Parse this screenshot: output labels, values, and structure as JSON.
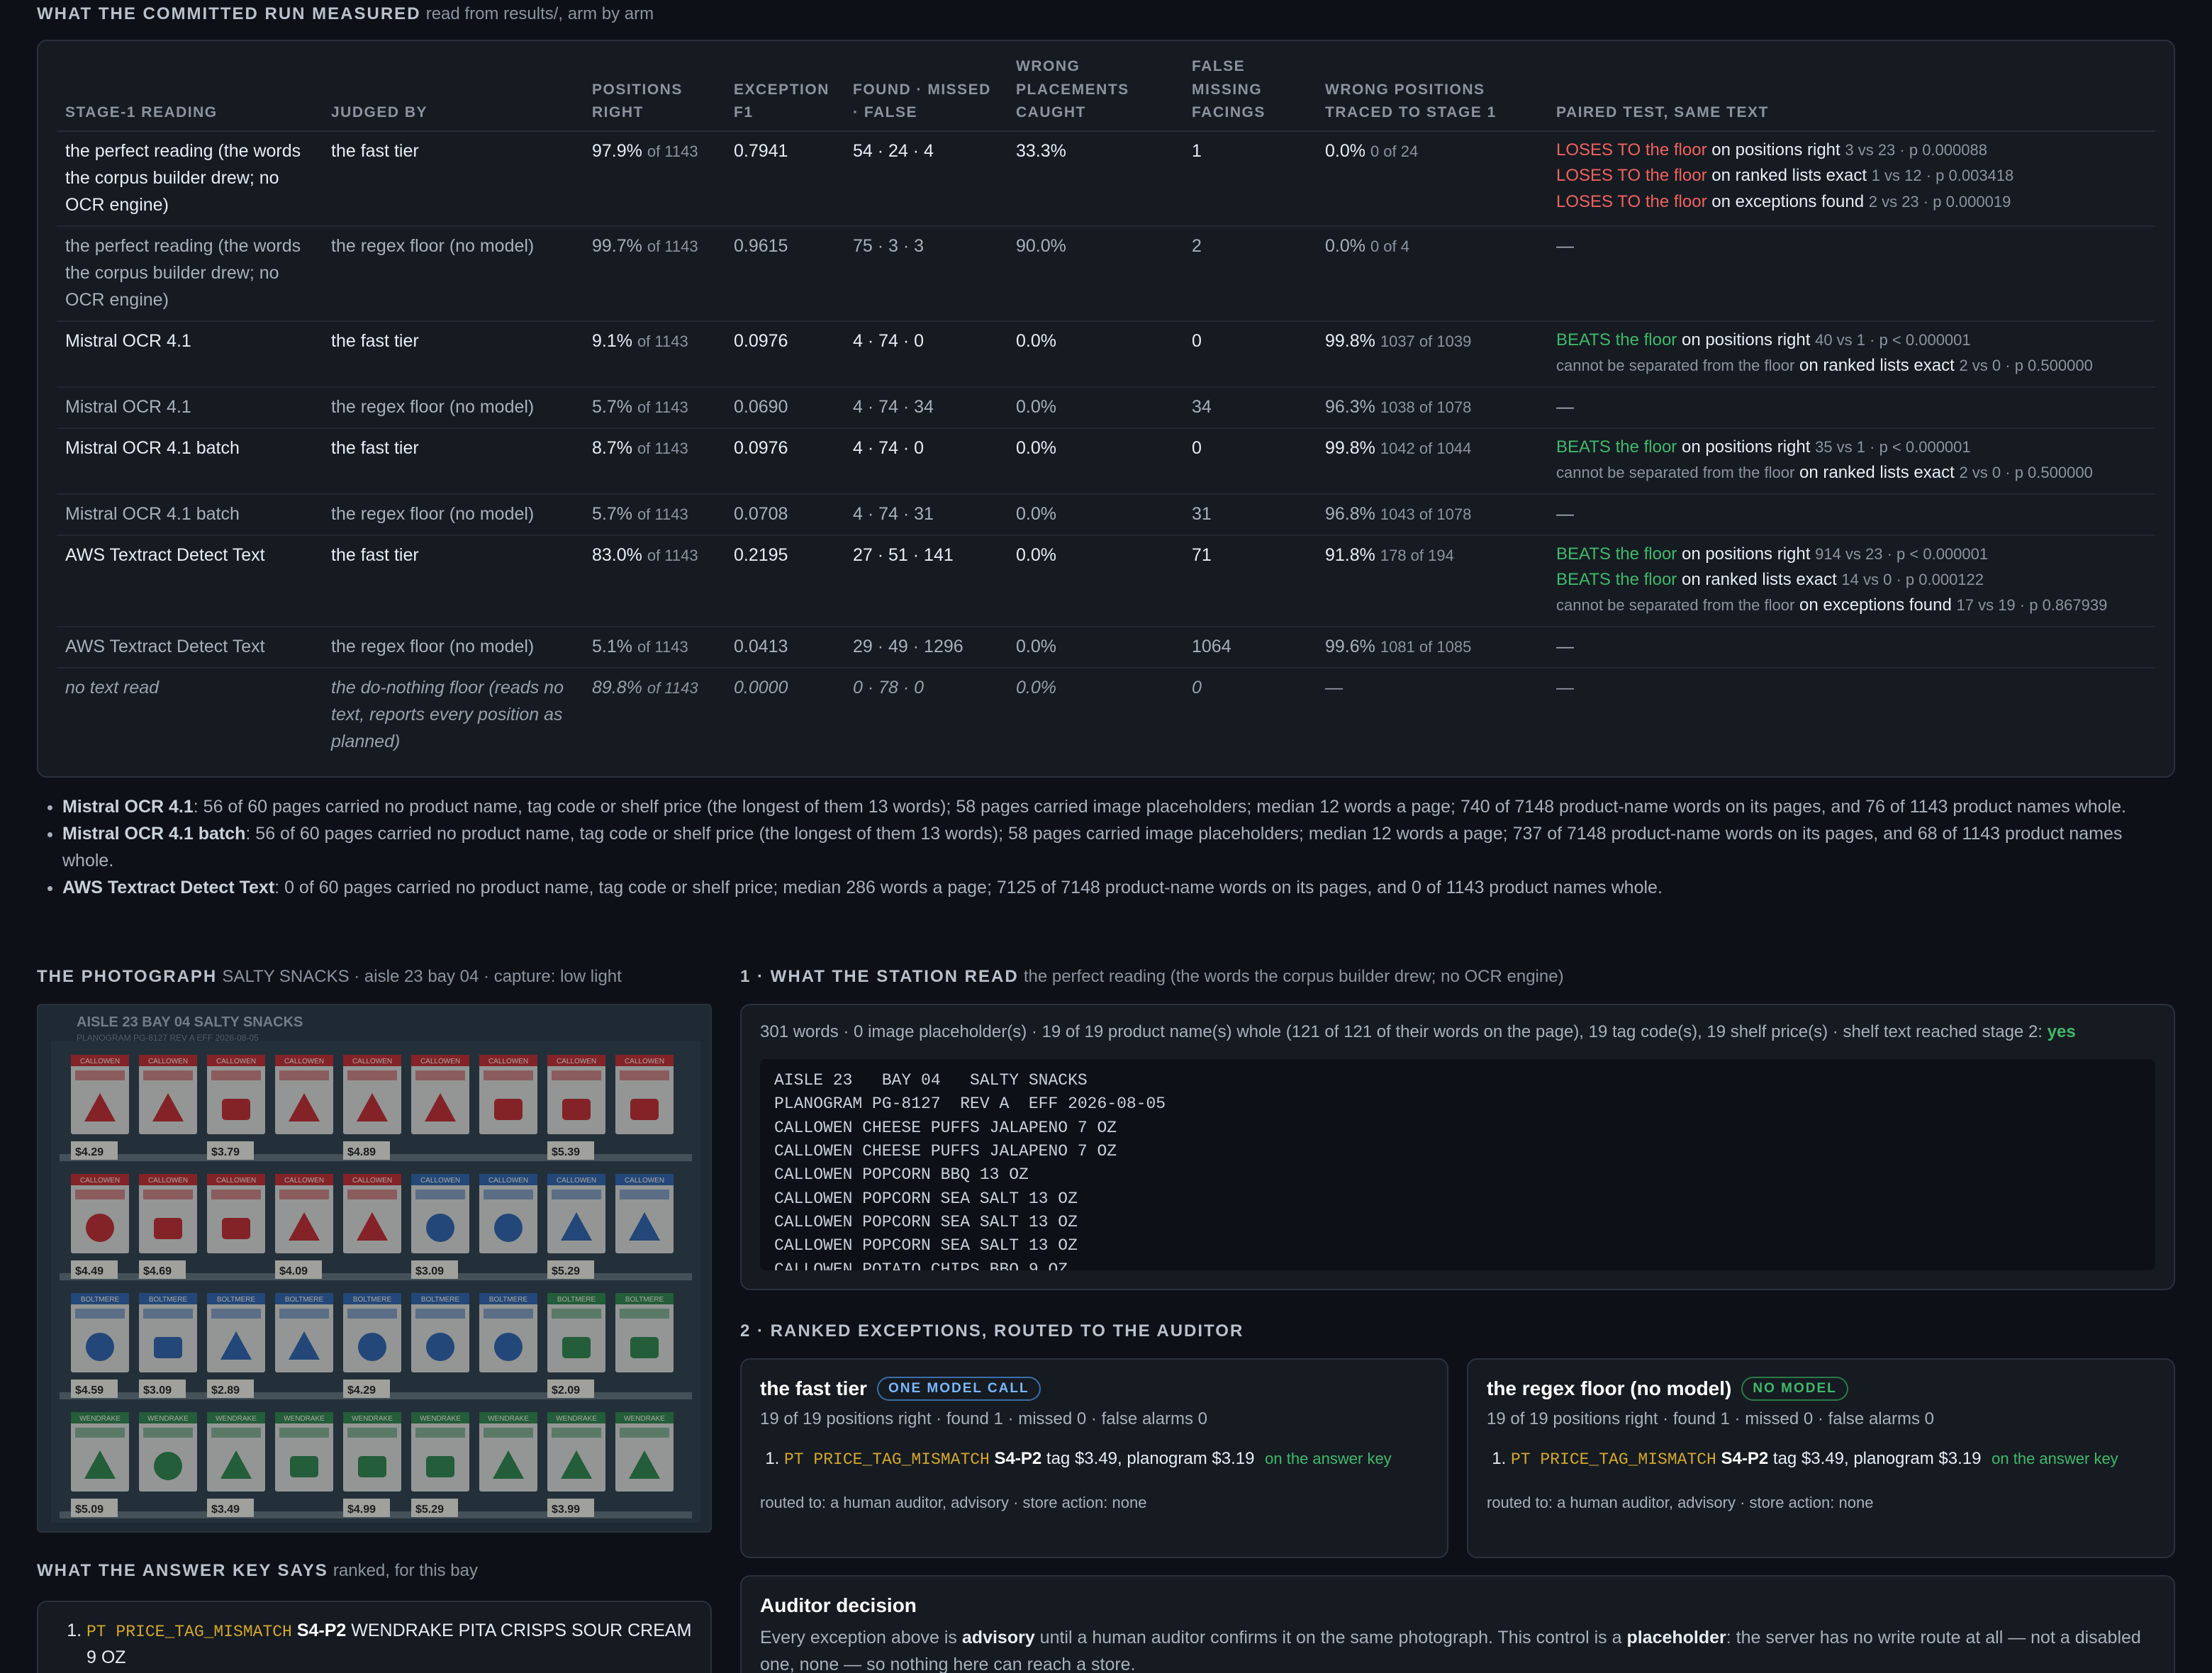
{
  "results": {
    "heading": "WHAT THE COMMITTED RUN MEASURED",
    "subheading": "read from results/, arm by arm",
    "columns": [
      "STAGE-1 READING",
      "JUDGED BY",
      "POSITIONS RIGHT",
      "EXCEPTION F1",
      "FOUND · MISSED · FALSE",
      "WRONG PLACEMENTS CAUGHT",
      "FALSE MISSING FACINGS",
      "WRONG POSITIONS TRACED TO STAGE 1",
      "PAIRED TEST, SAME TEXT"
    ],
    "rows": [
      {
        "style": "strong",
        "reading": "the perfect reading (the words the corpus builder drew; no OCR engine)",
        "judge": "the fast tier",
        "pos": "97.9%",
        "pos_of": "of 1143",
        "f1": "0.7941",
        "fmf": "54 · 24 · 4",
        "wpc": "33.3%",
        "fmf2": "1",
        "traced": "0.0%",
        "traced_of": "0 of 24",
        "verdicts": [
          {
            "kind": "lose",
            "label": "LOSES TO the floor",
            "on": "on positions right",
            "stat": "3 vs 23 · p 0.000088"
          },
          {
            "kind": "lose",
            "label": "LOSES TO the floor",
            "on": "on ranked lists exact",
            "stat": "1 vs 12 · p 0.003418"
          },
          {
            "kind": "lose",
            "label": "LOSES TO the floor",
            "on": "on exceptions found",
            "stat": "2 vs 23 · p 0.000019"
          }
        ]
      },
      {
        "style": "dim",
        "reading": "the perfect reading (the words the corpus builder drew; no OCR engine)",
        "judge": "the regex floor (no model)",
        "pos": "99.7%",
        "pos_of": "of 1143",
        "f1": "0.9615",
        "fmf": "75 · 3 · 3",
        "wpc": "90.0%",
        "fmf2": "2",
        "traced": "0.0%",
        "traced_of": "0 of 4",
        "dash": "—",
        "verdicts": []
      },
      {
        "style": "strong",
        "reading": "Mistral OCR 4.1",
        "judge": "the fast tier",
        "pos": "9.1%",
        "pos_of": "of 1143",
        "f1": "0.0976",
        "fmf": "4 · 74 · 0",
        "wpc": "0.0%",
        "fmf2": "0",
        "traced": "99.8%",
        "traced_of": "1037 of 1039",
        "verdicts": [
          {
            "kind": "beat",
            "label": "BEATS the floor",
            "on": "on positions right",
            "stat": "40 vs 1 · p < 0.000001"
          },
          {
            "kind": "cs",
            "label": "cannot be separated from the floor",
            "on": "on ranked lists exact",
            "stat": "2 vs 0 · p 0.500000"
          }
        ]
      },
      {
        "style": "dim",
        "reading": "Mistral OCR 4.1",
        "judge": "the regex floor (no model)",
        "pos": "5.7%",
        "pos_of": "of 1143",
        "f1": "0.0690",
        "fmf": "4 · 74 · 34",
        "wpc": "0.0%",
        "fmf2": "34",
        "traced": "96.3%",
        "traced_of": "1038 of 1078",
        "dash": "—",
        "verdicts": []
      },
      {
        "style": "strong",
        "reading": "Mistral OCR 4.1 batch",
        "judge": "the fast tier",
        "pos": "8.7%",
        "pos_of": "of 1143",
        "f1": "0.0976",
        "fmf": "4 · 74 · 0",
        "wpc": "0.0%",
        "fmf2": "0",
        "traced": "99.8%",
        "traced_of": "1042 of 1044",
        "verdicts": [
          {
            "kind": "beat",
            "label": "BEATS the floor",
            "on": "on positions right",
            "stat": "35 vs 1 · p < 0.000001"
          },
          {
            "kind": "cs",
            "label": "cannot be separated from the floor",
            "on": "on ranked lists exact",
            "stat": "2 vs 0 · p 0.500000"
          }
        ]
      },
      {
        "style": "dim",
        "reading": "Mistral OCR 4.1 batch",
        "judge": "the regex floor (no model)",
        "pos": "5.7%",
        "pos_of": "of 1143",
        "f1": "0.0708",
        "fmf": "4 · 74 · 31",
        "wpc": "0.0%",
        "fmf2": "31",
        "traced": "96.8%",
        "traced_of": "1043 of 1078",
        "dash": "—",
        "verdicts": []
      },
      {
        "style": "strong",
        "reading": "AWS Textract Detect Text",
        "judge": "the fast tier",
        "pos": "83.0%",
        "pos_of": "of 1143",
        "f1": "0.2195",
        "fmf": "27 · 51 · 141",
        "wpc": "0.0%",
        "fmf2": "71",
        "traced": "91.8%",
        "traced_of": "178 of 194",
        "verdicts": [
          {
            "kind": "beat",
            "label": "BEATS the floor",
            "on": "on positions right",
            "stat": "914 vs 23 · p < 0.000001"
          },
          {
            "kind": "beat",
            "label": "BEATS the floor",
            "on": "on ranked lists exact",
            "stat": "14 vs 0 · p 0.000122"
          },
          {
            "kind": "cs",
            "label": "cannot be separated from the floor",
            "on": "on exceptions found",
            "stat": "17 vs 19 · p 0.867939"
          }
        ]
      },
      {
        "style": "dim",
        "reading": "AWS Textract Detect Text",
        "judge": "the regex floor (no model)",
        "pos": "5.1%",
        "pos_of": "of 1143",
        "f1": "0.0413",
        "fmf": "29 · 49 · 1296",
        "wpc": "0.0%",
        "fmf2": "1064",
        "traced": "99.6%",
        "traced_of": "1081 of 1085",
        "dash": "—",
        "verdicts": []
      },
      {
        "style": "ital",
        "reading": "no text read",
        "judge": "the do-nothing floor (reads no text, reports every position as planned)",
        "pos": "89.8%",
        "pos_of": "of 1143",
        "f1": "0.0000",
        "fmf": "0 · 78 · 0",
        "wpc": "0.0%",
        "fmf2": "0",
        "traced": "—",
        "traced_of": "",
        "dash": "—",
        "verdicts": []
      }
    ]
  },
  "notes": [
    {
      "name": "Mistral OCR 4.1",
      "text": ": 56 of 60 pages carried no product name, tag code or shelf price (the longest of them 13 words); 58 pages carried image placeholders; median 12 words a page; 740 of 7148 product-name words on its pages, and 76 of 1143 product names whole."
    },
    {
      "name": "Mistral OCR 4.1 batch",
      "text": ": 56 of 60 pages carried no product name, tag code or shelf price (the longest of them 13 words); 58 pages carried image placeholders; median 12 words a page; 737 of 7148 product-name words on its pages, and 68 of 1143 product names whole."
    },
    {
      "name": "AWS Textract Detect Text",
      "text": ": 0 of 60 pages carried no product name, tag code or shelf price; median 286 words a page; 7125 of 7148 product-name words on its pages, and 0 of 1143 product names whole."
    }
  ],
  "photo": {
    "heading": "THE PHOTOGRAPH",
    "subheading": "SALTY SNACKS · aisle 23 bay 04 · capture: low light",
    "sign": "AISLE 23   BAY 04   SALTY SNACKS",
    "planogram_line": "PLANOGRAM PG-8127  REV A  EFF 2026-08-05",
    "brand_a": "CALLOWEN",
    "brand_b": "BOLTMERE",
    "brand_c": "WENDRAKE",
    "prices": [
      "$4.29",
      "$3.79",
      "$4.89",
      "$5.39",
      "$4.49",
      "$4.69",
      "$4.09",
      "$3.09",
      "$5.29",
      "$4.59",
      "$3.09",
      "$2.89",
      "$4.29",
      "$2.09",
      "$5.09",
      "$3.49",
      "$4.99",
      "$5.29",
      "$3.99"
    ]
  },
  "answer_key": {
    "heading": "WHAT THE ANSWER KEY SAYS",
    "subheading": "ranked, for this bay",
    "items": [
      {
        "code": "PT PRICE_TAG_MISMATCH",
        "pos": "S4-P2",
        "text": "WENDRAKE PITA CRISPS SOUR CREAM 9 OZ"
      }
    ]
  },
  "station": {
    "heading": "1 · WHAT THE STATION READ",
    "subheading": "the perfect reading (the words the corpus builder drew; no OCR engine)",
    "meta": "301 words · 0 image placeholder(s) · 19 of 19 product name(s) whole (121 of 121 of their words on the page), 19 tag code(s), 19 shelf price(s) · shelf text reached stage 2:",
    "meta_yes": "yes",
    "text": "AISLE 23   BAY 04   SALTY SNACKS\nPLANOGRAM PG-8127  REV A  EFF 2026-08-05\nCALLOWEN CHEESE PUFFS JALAPENO 7 OZ\nCALLOWEN CHEESE PUFFS JALAPENO 7 OZ\nCALLOWEN POPCORN BBQ 13 OZ\nCALLOWEN POPCORN SEA SALT 13 OZ\nCALLOWEN POPCORN SEA SALT 13 OZ\nCALLOWEN POPCORN SEA SALT 13 OZ\nCALLOWEN POTATO CHIPS BBQ 9 OZ"
  },
  "ranked": {
    "heading": "2 · RANKED EXCEPTIONS, ROUTED TO THE AUDITOR",
    "tiers": [
      {
        "name": "the fast tier",
        "badge": "ONE MODEL CALL",
        "stats": "19 of 19 positions right · found 1 · missed 0 · false alarms 0",
        "item_code": "PT PRICE_TAG_MISMATCH",
        "item_pos": "S4-P2",
        "item_text": "tag $3.49, planogram $3.19",
        "item_key": "on the answer key",
        "routed": "routed to: a human auditor, advisory · store action: none"
      },
      {
        "name": "the regex floor (no model)",
        "badge": "NO MODEL",
        "stats": "19 of 19 positions right · found 1 · missed 0 · false alarms 0",
        "item_code": "PT PRICE_TAG_MISMATCH",
        "item_pos": "S4-P2",
        "item_text": "tag $3.49, planogram $3.19",
        "item_key": "on the answer key",
        "routed": "routed to: a human auditor, advisory · store action: none"
      }
    ]
  },
  "auditor": {
    "title": "Auditor decision",
    "p1": "Every exception above is ",
    "b1": "advisory",
    "p2": " until a human auditor confirms it on the same photograph. This control is a ",
    "b2": "placeholder",
    "p3": ": the server has no write route at all — not a disabled one, none — so nothing here can reach a store."
  },
  "colors": {
    "lose": "#f0625d",
    "beat": "#3fb96a",
    "code": "#d4a72c",
    "badge_blue": "#79b8ff"
  }
}
